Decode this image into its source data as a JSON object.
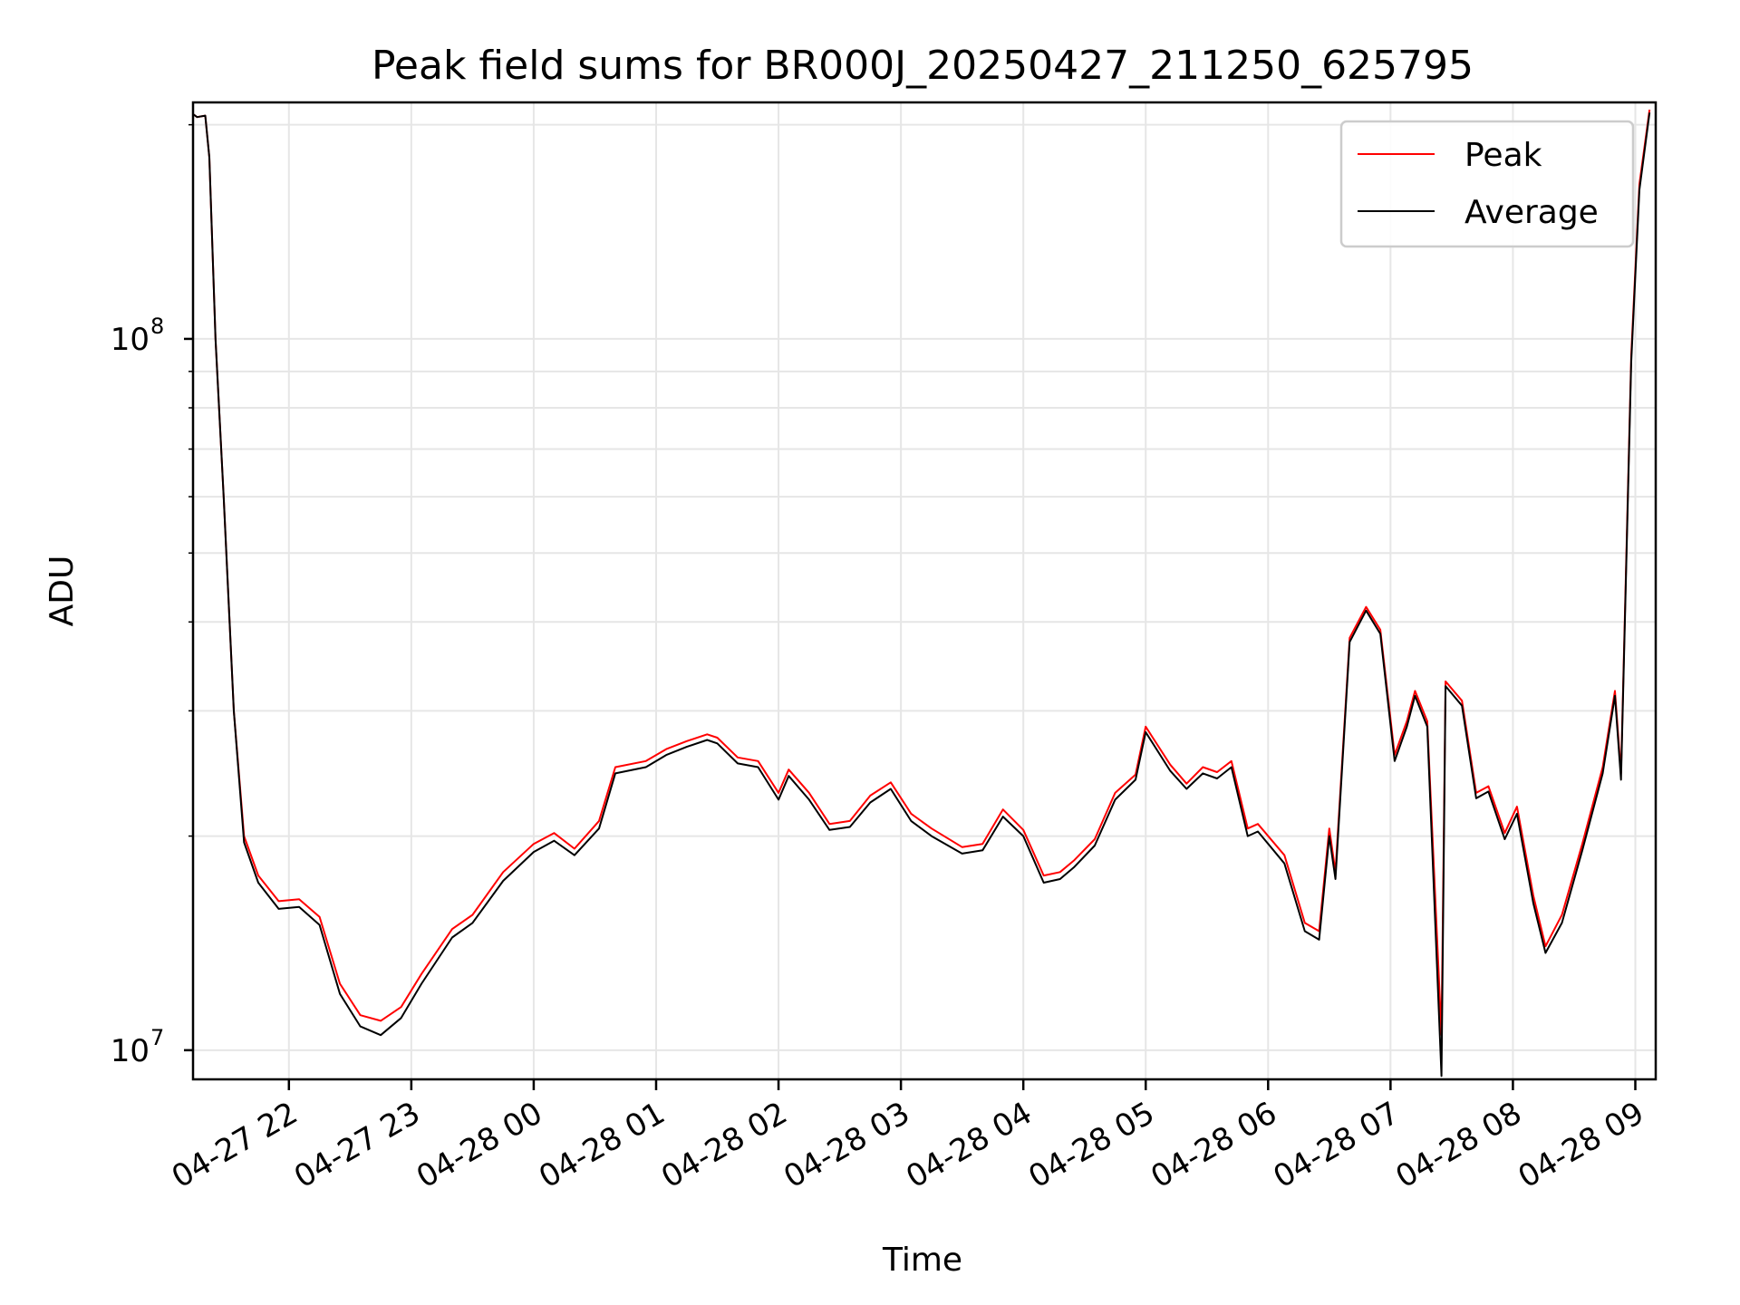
{
  "chart_data": {
    "type": "line",
    "title": "Peak field sums for BR000J_20250427_211250_625795",
    "xlabel": "Time",
    "ylabel": "ADU",
    "y_scale": "log",
    "ylim": [
      9100000,
      215000000
    ],
    "xlim": [
      "2025-04-27 21:13",
      "2025-04-28 09:10"
    ],
    "grid": true,
    "legend_position": "top-right",
    "x_ticks": [
      {
        "t": "2025-04-27 22:00",
        "label": "04-27 22"
      },
      {
        "t": "2025-04-27 23:00",
        "label": "04-27 23"
      },
      {
        "t": "2025-04-28 00:00",
        "label": "04-28 00"
      },
      {
        "t": "2025-04-28 01:00",
        "label": "04-28 01"
      },
      {
        "t": "2025-04-28 02:00",
        "label": "04-28 02"
      },
      {
        "t": "2025-04-28 03:00",
        "label": "04-28 03"
      },
      {
        "t": "2025-04-28 04:00",
        "label": "04-28 04"
      },
      {
        "t": "2025-04-28 05:00",
        "label": "04-28 05"
      },
      {
        "t": "2025-04-28 06:00",
        "label": "04-28 06"
      },
      {
        "t": "2025-04-28 07:00",
        "label": "04-28 07"
      },
      {
        "t": "2025-04-28 08:00",
        "label": "04-28 08"
      },
      {
        "t": "2025-04-28 09:00",
        "label": "04-28 09"
      }
    ],
    "y_ticks": [
      {
        "value": 10000000,
        "base": "10",
        "exp": "7"
      },
      {
        "value": 100000000,
        "base": "10",
        "exp": "8"
      }
    ],
    "series": [
      {
        "name": "Peak",
        "color": "#ff0000",
        "points": [
          [
            "2025-04-27 21:13",
            207000000
          ],
          [
            "2025-04-27 21:15",
            205000000
          ],
          [
            "2025-04-27 21:19",
            206000000
          ],
          [
            "2025-04-27 21:21",
            180000000
          ],
          [
            "2025-04-27 21:24",
            100000000
          ],
          [
            "2025-04-27 21:28",
            60000000
          ],
          [
            "2025-04-27 21:33",
            30000000
          ],
          [
            "2025-04-27 21:38",
            20000000
          ],
          [
            "2025-04-27 21:45",
            17600000
          ],
          [
            "2025-04-27 21:55",
            16200000
          ],
          [
            "2025-04-27 22:05",
            16300000
          ],
          [
            "2025-04-27 22:15",
            15400000
          ],
          [
            "2025-04-27 22:25",
            12400000
          ],
          [
            "2025-04-27 22:35",
            11200000
          ],
          [
            "2025-04-27 22:45",
            11000000
          ],
          [
            "2025-04-27 22:55",
            11500000
          ],
          [
            "2025-04-27 23:05",
            12800000
          ],
          [
            "2025-04-27 23:20",
            14800000
          ],
          [
            "2025-04-27 23:30",
            15500000
          ],
          [
            "2025-04-27 23:45",
            17800000
          ],
          [
            "2025-04-28 00:00",
            19500000
          ],
          [
            "2025-04-28 00:10",
            20200000
          ],
          [
            "2025-04-28 00:20",
            19200000
          ],
          [
            "2025-04-28 00:32",
            21000000
          ],
          [
            "2025-04-28 00:40",
            25000000
          ],
          [
            "2025-04-28 00:55",
            25500000
          ],
          [
            "2025-04-28 01:05",
            26500000
          ],
          [
            "2025-04-28 01:15",
            27200000
          ],
          [
            "2025-04-28 01:25",
            27800000
          ],
          [
            "2025-04-28 01:30",
            27500000
          ],
          [
            "2025-04-28 01:40",
            25800000
          ],
          [
            "2025-04-28 01:50",
            25500000
          ],
          [
            "2025-04-28 02:00",
            23000000
          ],
          [
            "2025-04-28 02:05",
            24800000
          ],
          [
            "2025-04-28 02:15",
            23000000
          ],
          [
            "2025-04-28 02:25",
            20800000
          ],
          [
            "2025-04-28 02:35",
            21000000
          ],
          [
            "2025-04-28 02:45",
            22800000
          ],
          [
            "2025-04-28 02:55",
            23800000
          ],
          [
            "2025-04-28 03:05",
            21500000
          ],
          [
            "2025-04-28 03:15",
            20500000
          ],
          [
            "2025-04-28 03:30",
            19300000
          ],
          [
            "2025-04-28 03:40",
            19500000
          ],
          [
            "2025-04-28 03:50",
            21800000
          ],
          [
            "2025-04-28 04:00",
            20400000
          ],
          [
            "2025-04-28 04:10",
            17600000
          ],
          [
            "2025-04-28 04:18",
            17800000
          ],
          [
            "2025-04-28 04:25",
            18500000
          ],
          [
            "2025-04-28 04:35",
            19800000
          ],
          [
            "2025-04-28 04:45",
            23000000
          ],
          [
            "2025-04-28 04:55",
            24400000
          ],
          [
            "2025-04-28 05:00",
            28500000
          ],
          [
            "2025-04-28 05:12",
            25200000
          ],
          [
            "2025-04-28 05:20",
            23700000
          ],
          [
            "2025-04-28 05:28",
            25000000
          ],
          [
            "2025-04-28 05:35",
            24600000
          ],
          [
            "2025-04-28 05:42",
            25500000
          ],
          [
            "2025-04-28 05:50",
            20500000
          ],
          [
            "2025-04-28 05:55",
            20800000
          ],
          [
            "2025-04-28 06:08",
            18800000
          ],
          [
            "2025-04-28 06:18",
            15100000
          ],
          [
            "2025-04-28 06:25",
            14700000
          ],
          [
            "2025-04-28 06:30",
            20500000
          ],
          [
            "2025-04-28 06:33",
            17800000
          ],
          [
            "2025-04-28 06:40",
            38000000
          ],
          [
            "2025-04-28 06:48",
            42000000
          ],
          [
            "2025-04-28 06:55",
            39000000
          ],
          [
            "2025-04-28 07:02",
            26000000
          ],
          [
            "2025-04-28 07:08",
            29000000
          ],
          [
            "2025-04-28 07:12",
            32000000
          ],
          [
            "2025-04-28 07:18",
            29000000
          ],
          [
            "2025-04-28 07:25",
            10500000
          ],
          [
            "2025-04-28 07:27",
            33000000
          ],
          [
            "2025-04-28 07:35",
            31000000
          ],
          [
            "2025-04-28 07:42",
            23000000
          ],
          [
            "2025-04-28 07:48",
            23500000
          ],
          [
            "2025-04-28 07:56",
            20200000
          ],
          [
            "2025-04-28 08:02",
            22000000
          ],
          [
            "2025-04-28 08:10",
            16500000
          ],
          [
            "2025-04-28 08:16",
            14000000
          ],
          [
            "2025-04-28 08:24",
            15500000
          ],
          [
            "2025-04-28 08:34",
            19500000
          ],
          [
            "2025-04-28 08:44",
            25000000
          ],
          [
            "2025-04-28 08:50",
            32000000
          ],
          [
            "2025-04-28 08:53",
            24500000
          ],
          [
            "2025-04-28 08:58",
            95000000
          ],
          [
            "2025-04-28 09:02",
            165000000
          ],
          [
            "2025-04-28 09:07",
            210000000
          ]
        ]
      },
      {
        "name": "Average",
        "color": "#000000",
        "points": [
          [
            "2025-04-27 21:13",
            207000000
          ],
          [
            "2025-04-27 21:15",
            205000000
          ],
          [
            "2025-04-27 21:19",
            206000000
          ],
          [
            "2025-04-27 21:21",
            180000000
          ],
          [
            "2025-04-27 21:24",
            100000000
          ],
          [
            "2025-04-27 21:28",
            60000000
          ],
          [
            "2025-04-27 21:33",
            30000000
          ],
          [
            "2025-04-27 21:38",
            19600000
          ],
          [
            "2025-04-27 21:45",
            17200000
          ],
          [
            "2025-04-27 21:55",
            15800000
          ],
          [
            "2025-04-27 22:05",
            15900000
          ],
          [
            "2025-04-27 22:15",
            15000000
          ],
          [
            "2025-04-27 22:25",
            12000000
          ],
          [
            "2025-04-27 22:35",
            10800000
          ],
          [
            "2025-04-27 22:45",
            10500000
          ],
          [
            "2025-04-27 22:55",
            11100000
          ],
          [
            "2025-04-27 23:05",
            12400000
          ],
          [
            "2025-04-27 23:20",
            14400000
          ],
          [
            "2025-04-27 23:30",
            15100000
          ],
          [
            "2025-04-27 23:45",
            17300000
          ],
          [
            "2025-04-28 00:00",
            19000000
          ],
          [
            "2025-04-28 00:10",
            19700000
          ],
          [
            "2025-04-28 00:20",
            18800000
          ],
          [
            "2025-04-28 00:32",
            20500000
          ],
          [
            "2025-04-28 00:40",
            24500000
          ],
          [
            "2025-04-28 00:55",
            25000000
          ],
          [
            "2025-04-28 01:05",
            26000000
          ],
          [
            "2025-04-28 01:15",
            26700000
          ],
          [
            "2025-04-28 01:25",
            27300000
          ],
          [
            "2025-04-28 01:30",
            27000000
          ],
          [
            "2025-04-28 01:40",
            25300000
          ],
          [
            "2025-04-28 01:50",
            25000000
          ],
          [
            "2025-04-28 02:00",
            22500000
          ],
          [
            "2025-04-28 02:05",
            24300000
          ],
          [
            "2025-04-28 02:15",
            22500000
          ],
          [
            "2025-04-28 02:25",
            20400000
          ],
          [
            "2025-04-28 02:35",
            20600000
          ],
          [
            "2025-04-28 02:45",
            22300000
          ],
          [
            "2025-04-28 02:55",
            23300000
          ],
          [
            "2025-04-28 03:05",
            21000000
          ],
          [
            "2025-04-28 03:15",
            20000000
          ],
          [
            "2025-04-28 03:30",
            18900000
          ],
          [
            "2025-04-28 03:40",
            19100000
          ],
          [
            "2025-04-28 03:50",
            21300000
          ],
          [
            "2025-04-28 04:00",
            20000000
          ],
          [
            "2025-04-28 04:10",
            17200000
          ],
          [
            "2025-04-28 04:18",
            17400000
          ],
          [
            "2025-04-28 04:25",
            18100000
          ],
          [
            "2025-04-28 04:35",
            19400000
          ],
          [
            "2025-04-28 04:45",
            22500000
          ],
          [
            "2025-04-28 04:55",
            24000000
          ],
          [
            "2025-04-28 05:00",
            28000000
          ],
          [
            "2025-04-28 05:12",
            24700000
          ],
          [
            "2025-04-28 05:20",
            23300000
          ],
          [
            "2025-04-28 05:28",
            24500000
          ],
          [
            "2025-04-28 05:35",
            24100000
          ],
          [
            "2025-04-28 05:42",
            25000000
          ],
          [
            "2025-04-28 05:50",
            20000000
          ],
          [
            "2025-04-28 05:55",
            20300000
          ],
          [
            "2025-04-28 06:08",
            18300000
          ],
          [
            "2025-04-28 06:18",
            14700000
          ],
          [
            "2025-04-28 06:25",
            14300000
          ],
          [
            "2025-04-28 06:30",
            20000000
          ],
          [
            "2025-04-28 06:33",
            17400000
          ],
          [
            "2025-04-28 06:40",
            37500000
          ],
          [
            "2025-04-28 06:48",
            41500000
          ],
          [
            "2025-04-28 06:55",
            38500000
          ],
          [
            "2025-04-28 07:02",
            25500000
          ],
          [
            "2025-04-28 07:08",
            28500000
          ],
          [
            "2025-04-28 07:12",
            31500000
          ],
          [
            "2025-04-28 07:18",
            28500000
          ],
          [
            "2025-04-28 07:25",
            9200000
          ],
          [
            "2025-04-28 07:27",
            32500000
          ],
          [
            "2025-04-28 07:35",
            30500000
          ],
          [
            "2025-04-28 07:42",
            22600000
          ],
          [
            "2025-04-28 07:48",
            23100000
          ],
          [
            "2025-04-28 07:56",
            19800000
          ],
          [
            "2025-04-28 08:02",
            21500000
          ],
          [
            "2025-04-28 08:10",
            16100000
          ],
          [
            "2025-04-28 08:16",
            13700000
          ],
          [
            "2025-04-28 08:24",
            15100000
          ],
          [
            "2025-04-28 08:34",
            19100000
          ],
          [
            "2025-04-28 08:44",
            24500000
          ],
          [
            "2025-04-28 08:50",
            31500000
          ],
          [
            "2025-04-28 08:53",
            24000000
          ],
          [
            "2025-04-28 08:58",
            93000000
          ],
          [
            "2025-04-28 09:02",
            162000000
          ],
          [
            "2025-04-28 09:07",
            208000000
          ]
        ]
      }
    ]
  }
}
